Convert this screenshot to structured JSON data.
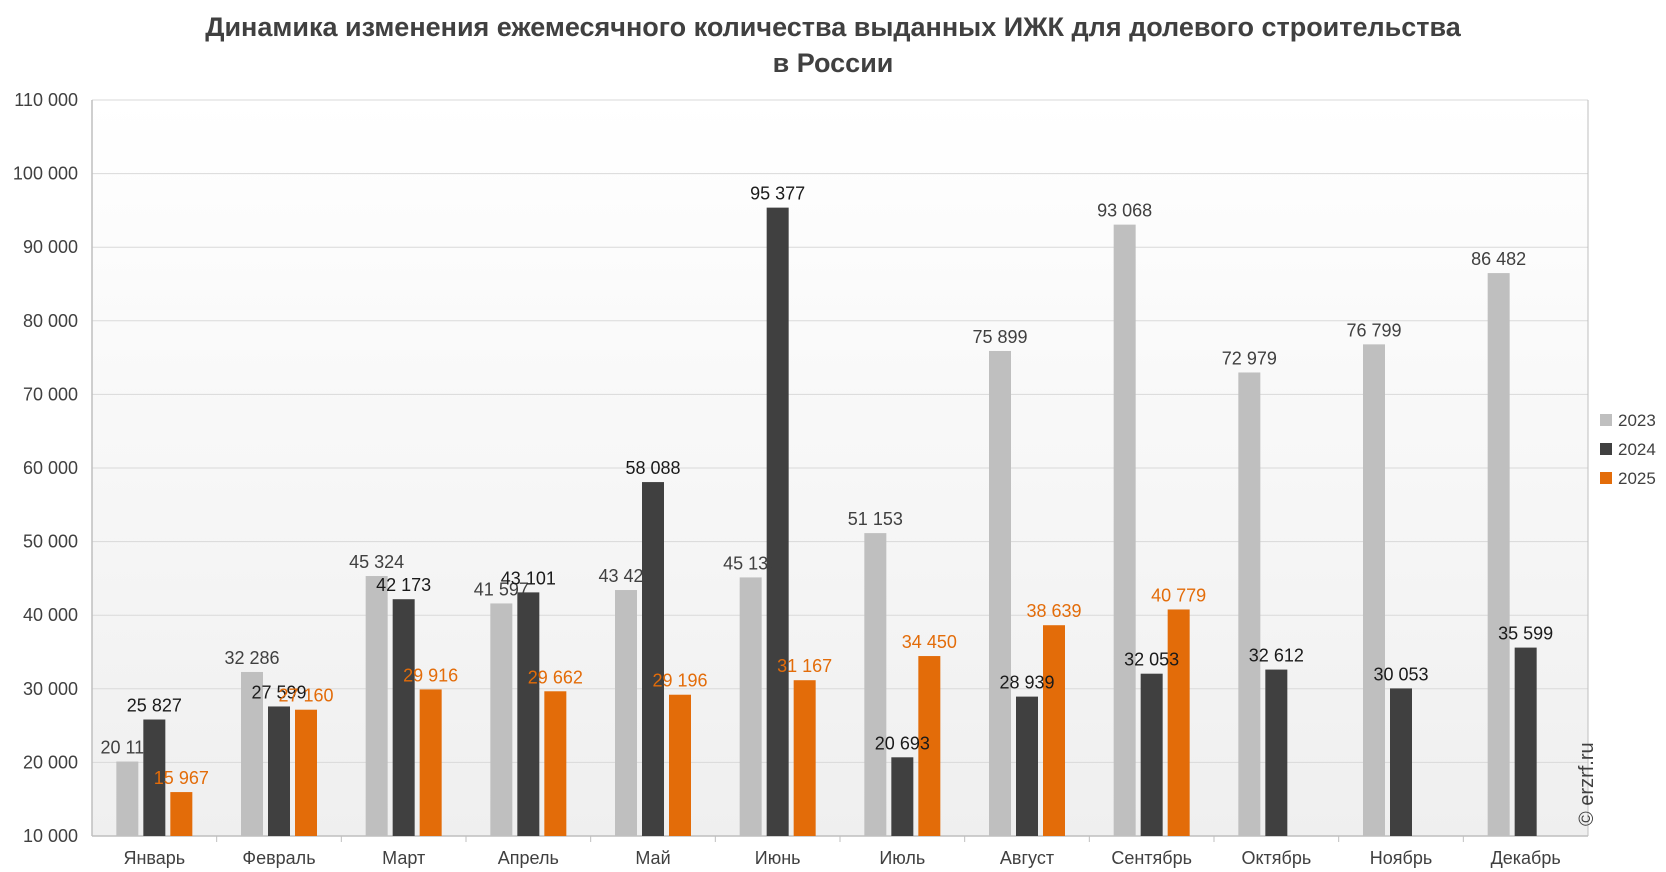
{
  "chart_data": {
    "type": "bar",
    "title": "Динамика изменения ежемесячного количества выданных ИЖК для долевого строительства",
    "subtitle": "в России",
    "xlabel": "",
    "ylabel": "",
    "ylim": [
      10000,
      110000
    ],
    "ytick_step": 10000,
    "yticks": [
      "10 000",
      "20 000",
      "30 000",
      "40 000",
      "50 000",
      "60 000",
      "70 000",
      "80 000",
      "90 000",
      "100 000",
      "110 000"
    ],
    "categories": [
      "Январь",
      "Февраль",
      "Март",
      "Апрель",
      "Май",
      "Июнь",
      "Июль",
      "Август",
      "Сентябрь",
      "Октябрь",
      "Ноябрь",
      "Декабрь"
    ],
    "series": [
      {
        "name": "2023",
        "color": "#bfbfbf",
        "label_color": "#404040",
        "values": [
          20117,
          32286,
          45324,
          41597,
          43422,
          45135,
          51153,
          75899,
          93068,
          72979,
          76799,
          86482
        ],
        "labels": [
          "20 117",
          "32 286",
          "45 324",
          "41 597",
          "43 422",
          "45 135",
          "51 153",
          "75 899",
          "93 068",
          "72 979",
          "76 799",
          "86 482"
        ]
      },
      {
        "name": "2024",
        "color": "#404040",
        "label_color": "#1a1a1a",
        "values": [
          25827,
          27599,
          42173,
          43101,
          58088,
          95377,
          20693,
          28939,
          32053,
          32612,
          30053,
          35599
        ],
        "labels": [
          "25 827",
          "27 599",
          "42 173",
          "43 101",
          "58 088",
          "95 377",
          "20 693",
          "28 939",
          "32 053",
          "32 612",
          "30 053",
          "35 599"
        ]
      },
      {
        "name": "2025",
        "color": "#e36c09",
        "label_color": "#e36c09",
        "values": [
          15967,
          27160,
          29916,
          29662,
          29196,
          31167,
          34450,
          38639,
          40779,
          null,
          null,
          null
        ],
        "labels": [
          "15 967",
          "27 160",
          "29 916",
          "29 662",
          "29 196",
          "31 167",
          "34 450",
          "38 639",
          "40 779",
          null,
          null,
          null
        ]
      }
    ],
    "grid": true,
    "legend_position": "right",
    "watermark": "© erzrf.ru"
  }
}
